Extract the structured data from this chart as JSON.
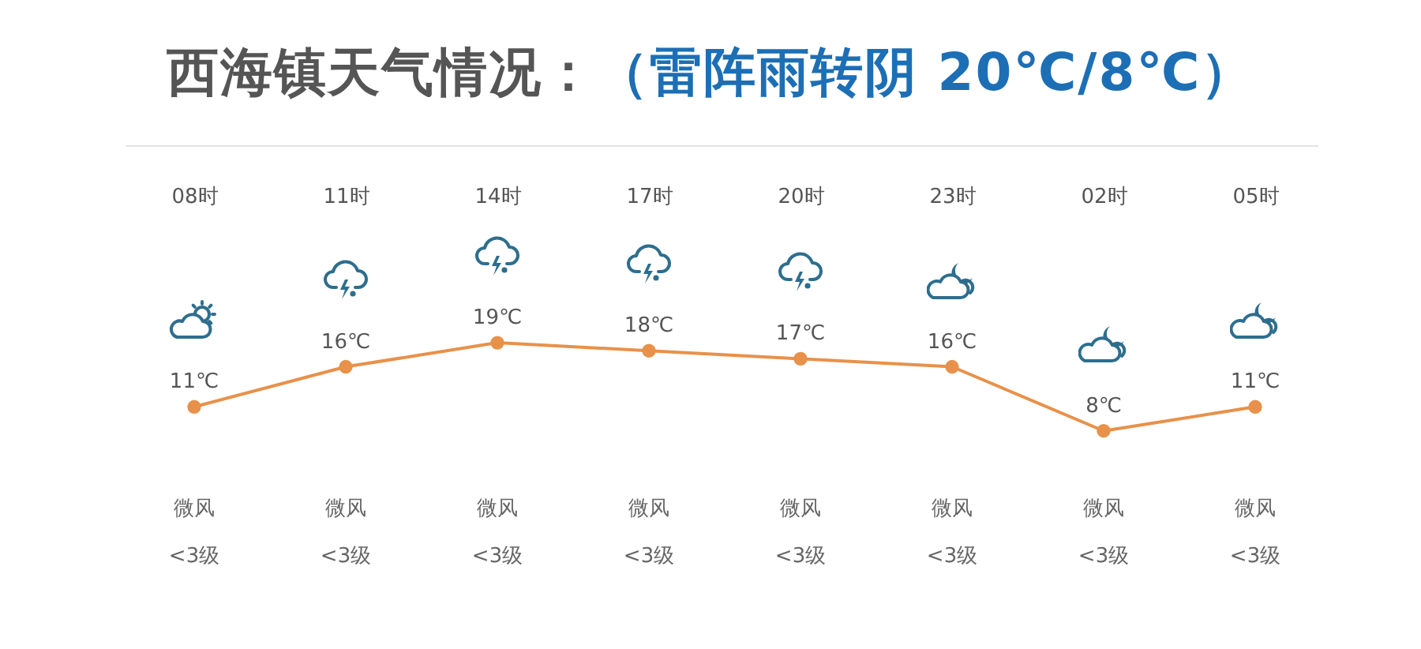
{
  "chart_data": {
    "type": "line",
    "title": "西海镇天气情况：",
    "subtitle": "（雷阵雨转阴 20℃/8℃）",
    "categories": [
      "08时",
      "11时",
      "14时",
      "17时",
      "20时",
      "23时",
      "02时",
      "05时"
    ],
    "values": [
      11,
      16,
      19,
      18,
      17,
      16,
      8,
      11
    ],
    "value_labels": [
      "11℃",
      "16℃",
      "19℃",
      "18℃",
      "17℃",
      "16℃",
      "8℃",
      "11℃"
    ],
    "color": "#e8914a",
    "marker": "circle",
    "line_style": "solid",
    "tick_labels": "x",
    "annotations": [
      "微风",
      "<3级",
      "微风",
      "<3级",
      "微风",
      "<3级",
      "微风",
      "<3级",
      "微风",
      "<3级",
      "微风",
      "<3级",
      "微风",
      "<3级",
      "微风",
      "<3级"
    ]
  }
}
